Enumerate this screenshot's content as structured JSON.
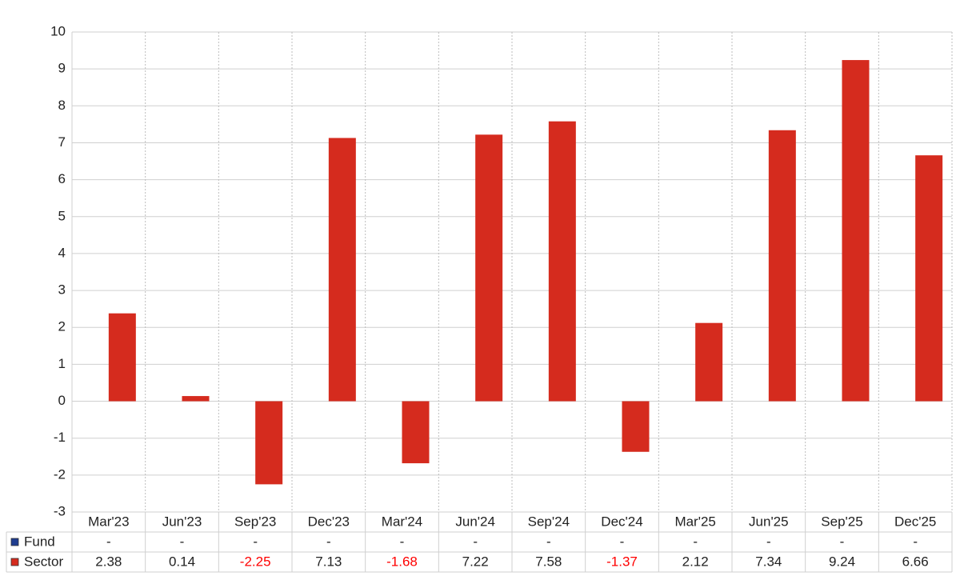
{
  "chart_data": {
    "type": "bar",
    "categories": [
      "Mar'23",
      "Jun'23",
      "Sep'23",
      "Dec'23",
      "Mar'24",
      "Jun'24",
      "Sep'24",
      "Dec'24",
      "Mar'25",
      "Jun'25",
      "Sep'25",
      "Dec'25"
    ],
    "series": [
      {
        "name": "Fund",
        "color": "#1f3d8f",
        "values": [
          null,
          null,
          null,
          null,
          null,
          null,
          null,
          null,
          null,
          null,
          null,
          null
        ],
        "value_labels": [
          "-",
          "-",
          "-",
          "-",
          "-",
          "-",
          "-",
          "-",
          "-",
          "-",
          "-",
          "-"
        ]
      },
      {
        "name": "Sector",
        "color": "#d52b1e",
        "values": [
          2.38,
          0.14,
          -2.25,
          7.13,
          -1.68,
          7.22,
          7.58,
          -1.37,
          2.12,
          7.34,
          9.24,
          6.66
        ]
      }
    ],
    "ylim": [
      -3,
      10
    ],
    "yticks": [
      -3,
      -2,
      -1,
      0,
      1,
      2,
      3,
      4,
      5,
      6,
      7,
      8,
      9,
      10
    ],
    "grid": true,
    "negative_color": "#ff0000"
  }
}
